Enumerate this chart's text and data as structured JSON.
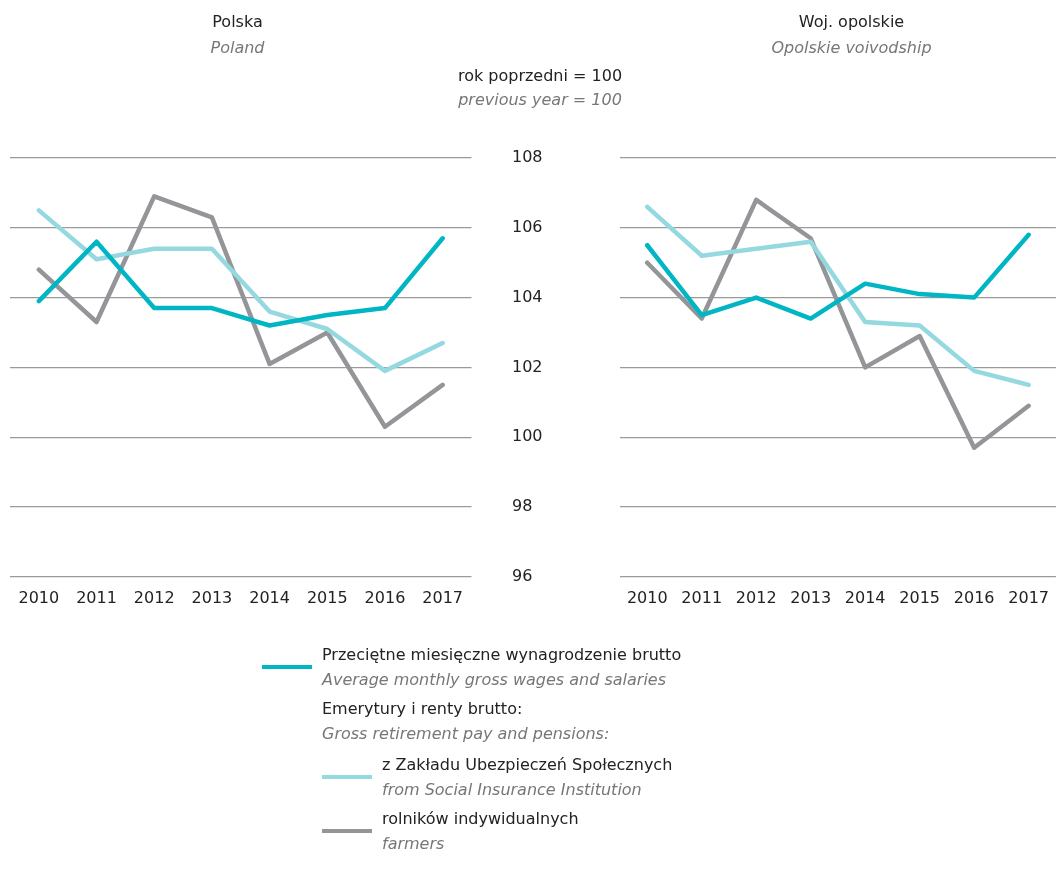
{
  "chart_data": [
    {
      "type": "line",
      "title": "Polska",
      "subtitle": "Poland",
      "categories": [
        "2010",
        "2011",
        "2012",
        "2013",
        "2014",
        "2015",
        "2016",
        "2017"
      ],
      "ylim": [
        96,
        108
      ],
      "yticks": [
        96,
        98,
        100,
        102,
        104,
        106,
        108
      ],
      "grid": "y",
      "tick_labels": "x",
      "legend": "bottom",
      "legend_title": "Emerytury i renty brutto:\nGross retirement pay and pensions:",
      "series": [
        {
          "name": "Przeciętne miesięczne wynagrodzenie brutto\nAverage monthly gross wages and salaries",
          "color": "#00b5c4",
          "values": [
            103.9,
            105.6,
            103.7,
            103.7,
            103.2,
            103.5,
            103.7,
            105.7
          ]
        },
        {
          "name": "z Zakładu Ubezpieczeń Społecznych\nfrom Social Insurance Institution",
          "color": "#94d8e0",
          "values": [
            106.5,
            105.1,
            105.4,
            105.4,
            103.6,
            103.1,
            101.9,
            102.7
          ]
        },
        {
          "name": "rolników indywidualnych\nfarmers",
          "color": "#939598",
          "values": [
            104.8,
            103.3,
            106.9,
            106.3,
            102.1,
            103.0,
            100.3,
            101.5
          ]
        }
      ]
    },
    {
      "type": "line",
      "title": "Woj. opolskie",
      "subtitle": "Opolskie voivodship",
      "ylabel": "rok poprzedni = 100\nprevious year = 100",
      "categories": [
        "2010",
        "2011",
        "2012",
        "2013",
        "2014",
        "2015",
        "2016",
        "2017"
      ],
      "ylim": [
        96,
        108
      ],
      "yticks": [
        96,
        98,
        100,
        102,
        104,
        106,
        108
      ],
      "grid": "y",
      "series": [
        {
          "color": "#00b5c4",
          "values": [
            105.5,
            103.5,
            104.0,
            103.4,
            104.4,
            104.1,
            104.0,
            105.8
          ]
        },
        {
          "color": "#94d8e0",
          "values": [
            106.6,
            105.2,
            105.4,
            105.6,
            103.3,
            103.2,
            101.9,
            101.5
          ]
        },
        {
          "color": "#939598",
          "values": [
            105.0,
            103.4,
            106.8,
            105.7,
            102.0,
            102.9,
            99.7,
            100.9
          ]
        }
      ]
    }
  ]
}
